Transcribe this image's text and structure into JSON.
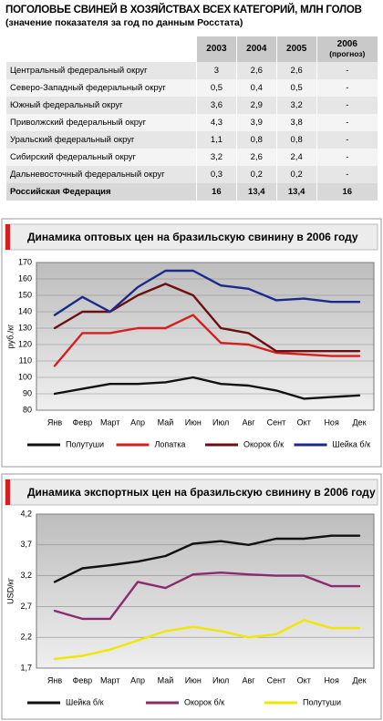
{
  "table": {
    "title": "ПОГОЛОВЬЕ СВИНЕЙ В ХОЗЯЙСТВАХ ВСЕХ КАТЕГОРИЙ, МЛН ГОЛОВ",
    "subtitle": "(значение показателя за год по данным Росстата)",
    "headers": [
      "2003",
      "2004",
      "2005",
      "2006"
    ],
    "forecast_note": "(прогноз)",
    "rows": [
      [
        "Центральный федеральный округ",
        "3",
        "2,6",
        "2,6",
        "-"
      ],
      [
        "Северо-Западный федеральный округ",
        "0,5",
        "0,4",
        "0,5",
        "-"
      ],
      [
        "Южный федеральный округ",
        "3,6",
        "2,9",
        "3,2",
        "-"
      ],
      [
        "Приволжский федеральный округ",
        "4,3",
        "3,9",
        "3,8",
        "-"
      ],
      [
        "Уральский федеральный округ",
        "1,1",
        "0,8",
        "0,8",
        "-"
      ],
      [
        "Сибирский федеральный округ",
        "3,2",
        "2,6",
        "2,4",
        "-"
      ],
      [
        "Дальневосточный федеральный округ",
        "0,3",
        "0,2",
        "0,2",
        "-"
      ],
      [
        "Российская Федерация",
        "16",
        "13,4",
        "13,4",
        "16"
      ]
    ]
  },
  "chart_data": [
    {
      "type": "line",
      "title": "Динамика оптовых цен на бразильскую свинину в 2006 году",
      "y_label": "руб./кг",
      "categories": [
        "Янв",
        "Февр",
        "Март",
        "Апр",
        "Май",
        "Июн",
        "Июл",
        "Авг",
        "Сент",
        "Окт",
        "Ноя",
        "Дек"
      ],
      "ylim": [
        80,
        170
      ],
      "yticks": [
        80,
        90,
        100,
        110,
        120,
        130,
        140,
        150,
        160,
        170
      ],
      "grid": true,
      "series": [
        {
          "name": "Полутуши",
          "color": "#111111",
          "values": [
            90,
            93,
            96,
            96,
            97,
            100,
            96,
            95,
            92,
            87,
            88,
            89
          ]
        },
        {
          "name": "Лопатка",
          "color": "#d42020",
          "values": [
            107,
            127,
            127,
            130,
            130,
            138,
            121,
            120,
            115,
            114,
            113,
            113
          ]
        },
        {
          "name": "Окорок б/к",
          "color": "#6b1010",
          "values": [
            130,
            140,
            140,
            150,
            157,
            150,
            130,
            127,
            116,
            116,
            116,
            116
          ]
        },
        {
          "name": "Шейка б/к",
          "color": "#1b2a8a",
          "values": [
            138,
            149,
            140,
            155,
            165,
            165,
            156,
            154,
            147,
            148,
            146,
            146
          ]
        }
      ]
    },
    {
      "type": "line",
      "title": "Динамика экспортных цен на бразильскую свинину в 2006 году",
      "y_label": "USD/кг",
      "categories": [
        "Янв",
        "Февр",
        "Март",
        "Апр",
        "Май",
        "Июн",
        "Июл",
        "Авг",
        "Сент",
        "Окт",
        "Ноя",
        "Дек"
      ],
      "ylim": [
        1.7,
        4.2
      ],
      "yticks": [
        {
          "value": 1.7,
          "label": "1,7"
        },
        {
          "value": 2.2,
          "label": "2,2"
        },
        {
          "value": 2.7,
          "label": "2,7"
        },
        {
          "value": 3.2,
          "label": "3,2"
        },
        {
          "value": 3.7,
          "label": "3,7"
        },
        {
          "value": 4.2,
          "label": "4,2"
        }
      ],
      "grid": true,
      "series": [
        {
          "name": "Шейка б/к",
          "color": "#111111",
          "values": [
            3.1,
            3.32,
            3.37,
            3.43,
            3.52,
            3.72,
            3.76,
            3.7,
            3.8,
            3.8,
            3.85,
            3.85
          ]
        },
        {
          "name": "Окорок б/к",
          "color": "#8b2a6e",
          "values": [
            2.63,
            2.5,
            2.5,
            3.1,
            3.0,
            3.22,
            3.25,
            3.22,
            3.2,
            3.2,
            3.03,
            3.03
          ]
        },
        {
          "name": "Полутуши",
          "color": "#f0e600",
          "values": [
            1.85,
            1.9,
            2.0,
            2.15,
            2.3,
            2.37,
            2.3,
            2.2,
            2.25,
            2.48,
            2.35,
            2.35
          ]
        }
      ]
    }
  ]
}
